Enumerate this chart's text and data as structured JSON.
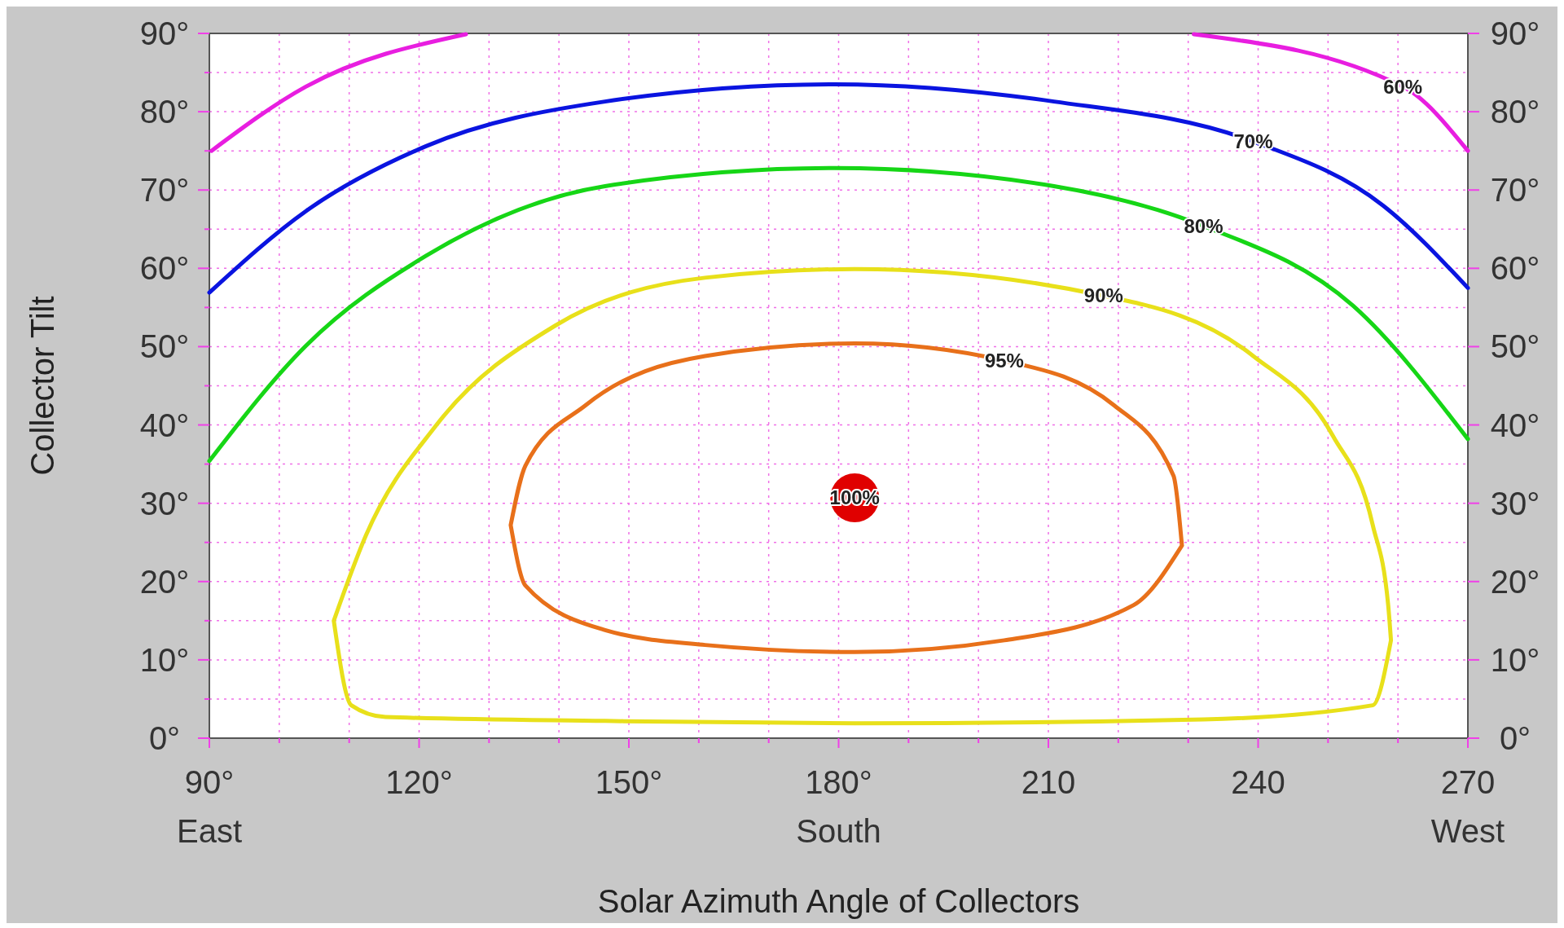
{
  "chart_data": {
    "type": "line",
    "xlabel": "Solar Azimuth Angle of Collectors",
    "ylabel": "Collector Tilt",
    "xlim": [
      90,
      270
    ],
    "ylim": [
      0,
      90
    ],
    "y2lim": [
      0,
      90
    ],
    "xticks": [
      {
        "value": 90,
        "label": "90°\nEast"
      },
      {
        "value": 100,
        "label": null
      },
      {
        "value": 110,
        "label": null
      },
      {
        "value": 120,
        "label": "120°"
      },
      {
        "value": 130,
        "label": null
      },
      {
        "value": 140,
        "label": null
      },
      {
        "value": 150,
        "label": "150°"
      },
      {
        "value": 160,
        "label": null
      },
      {
        "value": 170,
        "label": null
      },
      {
        "value": 180,
        "label": "180°\nSouth"
      },
      {
        "value": 190,
        "label": null
      },
      {
        "value": 200,
        "label": null
      },
      {
        "value": 210,
        "label": "210"
      },
      {
        "value": 220,
        "label": null
      },
      {
        "value": 230,
        "label": null
      },
      {
        "value": 240,
        "label": "240"
      },
      {
        "value": 250,
        "label": null
      },
      {
        "value": 260,
        "label": null
      },
      {
        "value": 270,
        "label": "270\nWest"
      }
    ],
    "yticks": [
      {
        "value": 0,
        "label": "0°"
      },
      {
        "value": 5,
        "label": null
      },
      {
        "value": 10,
        "label": "10°"
      },
      {
        "value": 15,
        "label": null
      },
      {
        "value": 20,
        "label": "20°"
      },
      {
        "value": 25,
        "label": null
      },
      {
        "value": 30,
        "label": "30°"
      },
      {
        "value": 35,
        "label": null
      },
      {
        "value": 40,
        "label": "40°"
      },
      {
        "value": 45,
        "label": null
      },
      {
        "value": 50,
        "label": "50°"
      },
      {
        "value": 55,
        "label": null
      },
      {
        "value": 60,
        "label": "60°"
      },
      {
        "value": 65,
        "label": null
      },
      {
        "value": 70,
        "label": "70°"
      },
      {
        "value": 75,
        "label": null
      },
      {
        "value": 80,
        "label": "80°"
      },
      {
        "value": 85,
        "label": null
      },
      {
        "value": 90,
        "label": "90°"
      }
    ],
    "y2ticks": [
      {
        "value": 0,
        "label": "0°"
      },
      {
        "value": 10,
        "label": "10°"
      },
      {
        "value": 20,
        "label": "20°"
      },
      {
        "value": 30,
        "label": "30°"
      },
      {
        "value": 40,
        "label": "40°"
      },
      {
        "value": 50,
        "label": "50°"
      },
      {
        "value": 60,
        "label": "60°"
      },
      {
        "value": 70,
        "label": "70°"
      },
      {
        "value": 80,
        "label": "80°"
      },
      {
        "value": 90,
        "label": "90°"
      }
    ],
    "grid": true,
    "line_style": "solid",
    "marker": "none",
    "series": [
      {
        "color": "#e81ee0",
        "x": [
          90.3,
          103.8,
          126.7,
          null,
          230.8,
          260.7,
          270
        ],
        "values": [
          75,
          83.2,
          89.9,
          null,
          89.9,
          83.2,
          75
        ]
      },
      {
        "color": "#0a14e0",
        "x": [
          90,
          103.8,
          121,
          146.6,
          179.4,
          210.8,
          239.3,
          257.9,
          270
        ],
        "values": [
          56.9,
          67.3,
          75.6,
          81.3,
          83.5,
          81.3,
          76.2,
          68,
          57.5
        ]
      },
      {
        "color": "#16d616",
        "x": [
          90,
          103.8,
          121,
          146.6,
          179.4,
          210.8,
          232.2,
          253.6,
          270
        ],
        "values": [
          35.4,
          50.1,
          61.6,
          70.5,
          72.8,
          70.5,
          65.4,
          55.2,
          38.2
        ]
      },
      {
        "color": "#e8e01a",
        "x": [
          107.8,
          110.3,
          115.2,
          146.6,
          182.3,
          232.2,
          256.4,
          259,
          null,
          107.8,
          112.4,
          122.4,
          139.5,
          160.9,
          182.3,
          217.9,
          239.3,
          250.7,
          256.4,
          258.6,
          259
        ],
        "values": [
          15,
          4.2,
          2.7,
          2.2,
          1.9,
          2.4,
          4.2,
          12.5,
          null,
          15,
          25.9,
          39.9,
          52.7,
          58.8,
          59.9,
          56.5,
          48.8,
          38.6,
          27.2,
          17,
          12.5
        ]
      },
      {
        "color": "#e8701a",
        "x": [
          133.1,
          135.2,
          146.6,
          160.9,
          182.3,
          203.7,
          222.2,
          229.1,
          null,
          133.1,
          135.2,
          143.8,
          160.9,
          182.3,
          203.7,
          219.4,
          227.9,
          229.1
        ],
        "values": [
          27.2,
          19.5,
          13.8,
          11.9,
          11,
          12.5,
          17,
          24.6,
          null,
          27.2,
          34.8,
          42.5,
          48.8,
          50.4,
          48.2,
          42.5,
          33.5,
          24.6
        ]
      },
      {
        "type": "scatter",
        "marker": "circle",
        "color": "#e00000",
        "x": [
          182.3
        ],
        "values": [
          30.7
        ]
      }
    ],
    "annotations": [
      {
        "text": "60%",
        "x": 260.7,
        "y": 83.2
      },
      {
        "text": "70%",
        "x": 239.3,
        "y": 76.2
      },
      {
        "text": "80%",
        "x": 232.2,
        "y": 65.4
      },
      {
        "text": "90%",
        "x": 217.9,
        "y": 56.5
      },
      {
        "text": "95%",
        "x": 203.7,
        "y": 48.2
      },
      {
        "text": "100%",
        "x": 182.3,
        "y": 30.7
      }
    ]
  }
}
